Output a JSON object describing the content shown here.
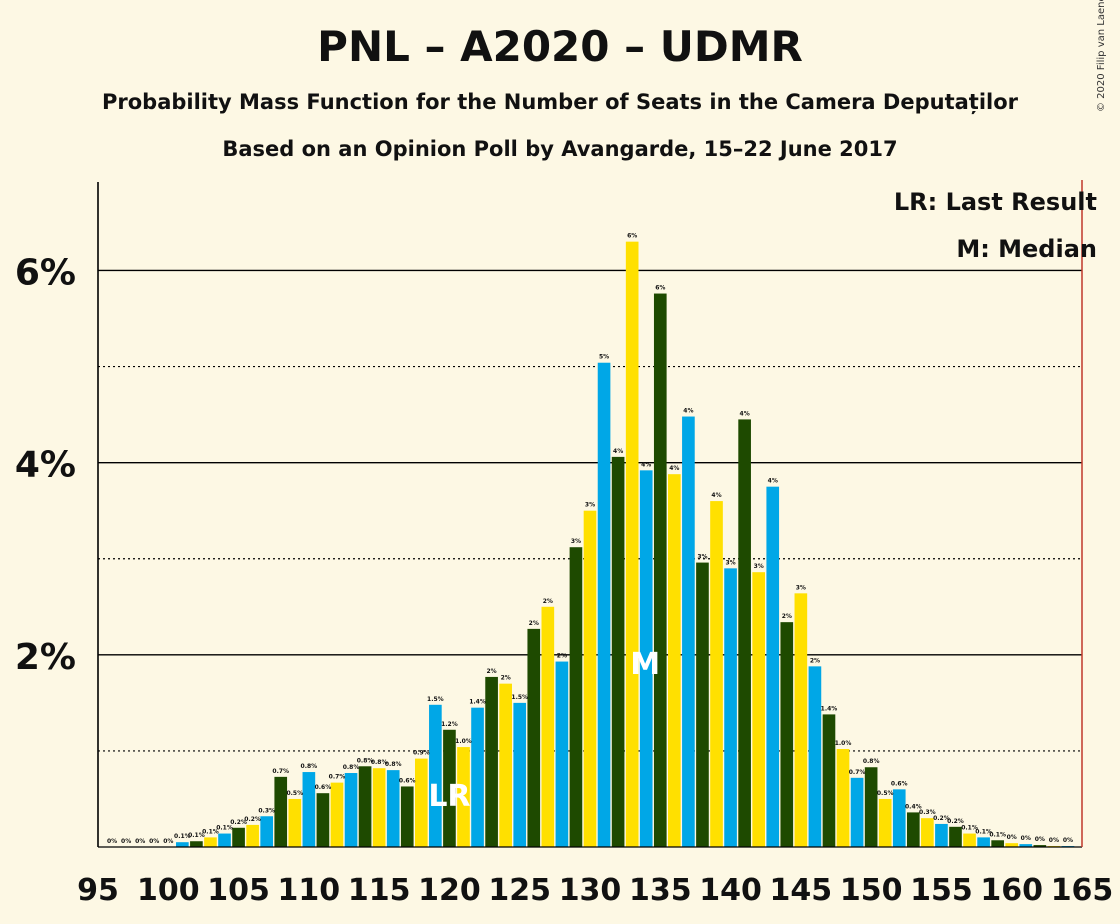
{
  "title": "PNL – A2020 – UDMR",
  "subtitle1": "Probability Mass Function for the Number of Seats in the Camera Deputaților",
  "subtitle2": "Based on an Opinion Poll by Avangarde, 15–22 June 2017",
  "copyright": "© 2020 Filip van Laenen",
  "legend": {
    "lr": "LR: Last Result",
    "m": "M: Median"
  },
  "markers": {
    "lr_label": "LR",
    "median_label": "M",
    "lr_seat": 120,
    "median_seat": 134,
    "majority_seat": 165
  },
  "colors": {
    "background": "#fdf8e4",
    "pnl": "#ffe000",
    "a2020": "#00a7e7",
    "udmr": "#1e4a00",
    "majority_line": "#c0392b"
  },
  "chart_data": {
    "type": "bar",
    "x": [
      96,
      97,
      98,
      99,
      100,
      101,
      102,
      103,
      104,
      105,
      106,
      107,
      108,
      109,
      110,
      111,
      112,
      113,
      114,
      115,
      116,
      117,
      118,
      119,
      120,
      121,
      122,
      123,
      124,
      125,
      126,
      127,
      128,
      129,
      130,
      131,
      132,
      133,
      134,
      135,
      136,
      137,
      138,
      139,
      140,
      141,
      142,
      143,
      144,
      145,
      146,
      147,
      148,
      149,
      150,
      151,
      152,
      153,
      154,
      155,
      156,
      157,
      158,
      159,
      160,
      161,
      162,
      163,
      164
    ],
    "values": [
      0,
      0,
      0,
      0,
      0,
      0.05,
      0.06,
      0.1,
      0.14,
      0.2,
      0.23,
      0.32,
      0.73,
      0.5,
      0.78,
      0.56,
      0.67,
      0.77,
      0.84,
      0.82,
      0.8,
      0.63,
      0.92,
      1.48,
      1.22,
      1.04,
      1.45,
      1.77,
      1.7,
      1.5,
      2.27,
      2.5,
      1.93,
      3.12,
      3.5,
      5.04,
      4.06,
      6.3,
      3.92,
      5.76,
      3.88,
      4.48,
      2.96,
      3.6,
      2.9,
      4.45,
      2.86,
      3.75,
      2.34,
      2.64,
      1.88,
      1.38,
      1.02,
      0.72,
      0.83,
      0.5,
      0.6,
      0.36,
      0.3,
      0.24,
      0.21,
      0.14,
      0.1,
      0.07,
      0.04,
      0.03,
      0.02,
      0.01,
      0.01
    ],
    "labels": [
      "0%",
      "0%",
      "0%",
      "0%",
      "0%",
      "0.1%",
      "0.1%",
      "0.1%",
      "0.1%",
      "0.2%",
      "0.2%",
      "0.3%",
      "0.7%",
      "0.5%",
      "0.8%",
      "0.6%",
      "0.7%",
      "0.8%",
      "0.8%",
      "0.8%",
      "0.8%",
      "0.6%",
      "0.9%",
      "1.5%",
      "1.2%",
      "1.0%",
      "1.4%",
      "2%",
      "2%",
      "1.5%",
      "2%",
      "2%",
      "2%",
      "3%",
      "3%",
      "5%",
      "4%",
      "6%",
      "4%",
      "6%",
      "4%",
      "4%",
      "3%",
      "4%",
      "3%",
      "4%",
      "3%",
      "4%",
      "2%",
      "3%",
      "2%",
      "1.4%",
      "1.0%",
      "0.7%",
      "0.8%",
      "0.5%",
      "0.6%",
      "0.4%",
      "0.3%",
      "0.2%",
      "0.2%",
      "0.1%",
      "0.1%",
      "0.1%",
      "0%",
      "0%",
      "0%",
      "0%",
      "0%"
    ],
    "color_cycle": [
      "udmr",
      "pnl",
      "a2020"
    ],
    "xticks": [
      95,
      100,
      105,
      110,
      115,
      120,
      125,
      130,
      135,
      140,
      145,
      150,
      155,
      160,
      165
    ],
    "yticks": [
      {
        "value": 2,
        "label": "2%"
      },
      {
        "value": 4,
        "label": "4%"
      },
      {
        "value": 6,
        "label": "6%"
      }
    ],
    "minor_gridlines": [
      1,
      3,
      5
    ],
    "xlim": [
      95,
      165
    ],
    "ylim": [
      0,
      6.9
    ],
    "legend_position": "top-right",
    "xlabel": "",
    "ylabel": ""
  }
}
